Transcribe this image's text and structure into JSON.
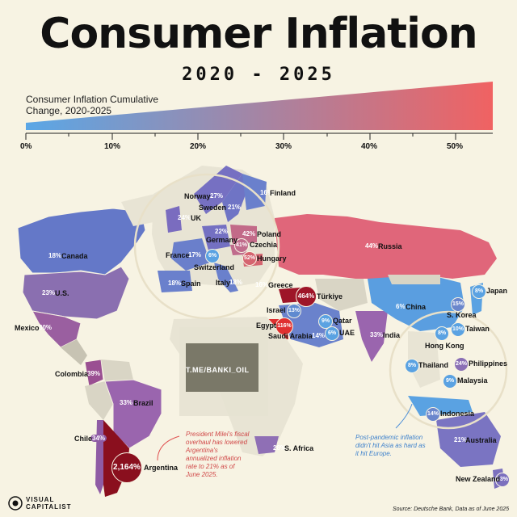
{
  "header": {
    "title": "Consumer Inflation",
    "subtitle": "2020 - 2025"
  },
  "legend": {
    "title": "Consumer Inflation Cumulative Change, 2020-2025",
    "ticks": [
      "0%",
      "10%",
      "20%",
      "30%",
      "40%",
      "50%"
    ],
    "color_low": "#5aa7e6",
    "color_high": "#f06262"
  },
  "countries": [
    {
      "name": "Canada",
      "value": "18%"
    },
    {
      "name": "U.S.",
      "value": "23%"
    },
    {
      "name": "Mexico",
      "value": "30%"
    },
    {
      "name": "Colombia",
      "value": "39%"
    },
    {
      "name": "Brazil",
      "value": "33%"
    },
    {
      "name": "Chile",
      "value": "34%"
    },
    {
      "name": "Argentina",
      "value": "2,164%"
    },
    {
      "name": "Norway",
      "value": "27%"
    },
    {
      "name": "Sweden",
      "value": "21%"
    },
    {
      "name": "Finland",
      "value": "16%"
    },
    {
      "name": "UK",
      "value": "24%"
    },
    {
      "name": "Germany",
      "value": "22%"
    },
    {
      "name": "Poland",
      "value": "42%"
    },
    {
      "name": "Czechia",
      "value": "41%"
    },
    {
      "name": "France",
      "value": "17%"
    },
    {
      "name": "Switzerland",
      "value": "6%"
    },
    {
      "name": "Hungary",
      "value": "52%"
    },
    {
      "name": "Spain",
      "value": "18%"
    },
    {
      "name": "Italy",
      "value": "18%"
    },
    {
      "name": "Greece",
      "value": "16%"
    },
    {
      "name": "Türkiye",
      "value": "464%"
    },
    {
      "name": "Russia",
      "value": "44%"
    },
    {
      "name": "Israel",
      "value": "13%"
    },
    {
      "name": "Egypt",
      "value": "116%"
    },
    {
      "name": "Saudi Arabia",
      "value": "14%"
    },
    {
      "name": "Qatar",
      "value": "9%"
    },
    {
      "name": "UAE",
      "value": "6%"
    },
    {
      "name": "India",
      "value": "33%"
    },
    {
      "name": "China",
      "value": "6%"
    },
    {
      "name": "Japan",
      "value": "8%"
    },
    {
      "name": "S. Korea",
      "value": "15%"
    },
    {
      "name": "Taiwan",
      "value": "10%"
    },
    {
      "name": "Hong Kong",
      "value": "8%"
    },
    {
      "name": "Thailand",
      "value": "8%"
    },
    {
      "name": "Philippines",
      "value": "24%"
    },
    {
      "name": "Malaysia",
      "value": "9%"
    },
    {
      "name": "Indonesia",
      "value": "14%"
    },
    {
      "name": "S. Africa",
      "value": "28%"
    },
    {
      "name": "Australia",
      "value": "21%"
    },
    {
      "name": "New Zealand",
      "value": "23%"
    }
  ],
  "notes": {
    "argentina": "President Milei's fiscal overhaul has lowered Argentina's annualized inflation rate to 21% as of June 2025.",
    "asia": "Post-pandemic inflation didn't hit Asia as hard as it hit Europe."
  },
  "watermark": "T.ME/BANKI_OIL",
  "brand": {
    "line1": "VISUAL",
    "line2": "CAPITALIST"
  },
  "source": "Source: Deutsche Bank, Data as of June 2025"
}
